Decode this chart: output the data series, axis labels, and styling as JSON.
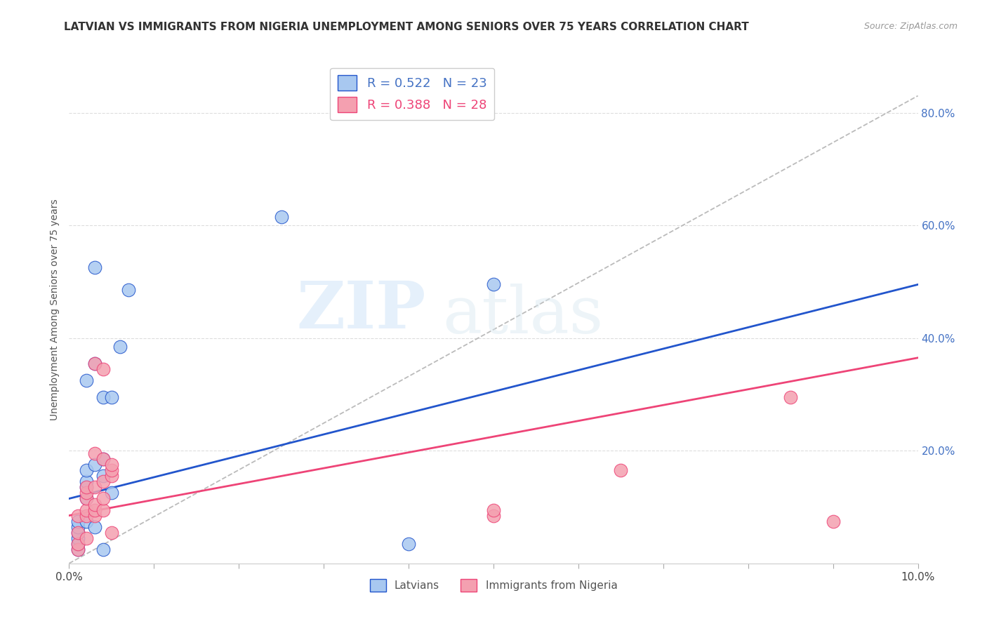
{
  "title": "LATVIAN VS IMMIGRANTS FROM NIGERIA UNEMPLOYMENT AMONG SENIORS OVER 75 YEARS CORRELATION CHART",
  "source": "Source: ZipAtlas.com",
  "ylabel": "Unemployment Among Seniors over 75 years",
  "right_yticks": [
    "80.0%",
    "60.0%",
    "40.0%",
    "20.0%"
  ],
  "right_ytick_vals": [
    0.8,
    0.6,
    0.4,
    0.2
  ],
  "latvian_color": "#A8C8F0",
  "nigerian_color": "#F4A0B0",
  "blue_line_color": "#2255CC",
  "pink_line_color": "#EE4477",
  "dashed_line_color": "#BBBBBB",
  "latvian_points": [
    [
      0.001,
      0.025
    ],
    [
      0.001,
      0.035
    ],
    [
      0.001,
      0.045
    ],
    [
      0.001,
      0.055
    ],
    [
      0.001,
      0.065
    ],
    [
      0.001,
      0.075
    ],
    [
      0.002,
      0.075
    ],
    [
      0.002,
      0.115
    ],
    [
      0.002,
      0.135
    ],
    [
      0.002,
      0.145
    ],
    [
      0.002,
      0.165
    ],
    [
      0.002,
      0.325
    ],
    [
      0.003,
      0.065
    ],
    [
      0.003,
      0.175
    ],
    [
      0.003,
      0.355
    ],
    [
      0.003,
      0.525
    ],
    [
      0.004,
      0.025
    ],
    [
      0.004,
      0.155
    ],
    [
      0.004,
      0.185
    ],
    [
      0.004,
      0.295
    ],
    [
      0.005,
      0.125
    ],
    [
      0.005,
      0.295
    ],
    [
      0.006,
      0.385
    ],
    [
      0.007,
      0.485
    ],
    [
      0.025,
      0.615
    ],
    [
      0.05,
      0.495
    ],
    [
      0.04,
      0.035
    ]
  ],
  "nigerian_points": [
    [
      0.001,
      0.025
    ],
    [
      0.001,
      0.035
    ],
    [
      0.001,
      0.055
    ],
    [
      0.001,
      0.085
    ],
    [
      0.002,
      0.045
    ],
    [
      0.002,
      0.085
    ],
    [
      0.002,
      0.095
    ],
    [
      0.002,
      0.115
    ],
    [
      0.002,
      0.125
    ],
    [
      0.002,
      0.135
    ],
    [
      0.003,
      0.085
    ],
    [
      0.003,
      0.095
    ],
    [
      0.003,
      0.105
    ],
    [
      0.003,
      0.135
    ],
    [
      0.003,
      0.195
    ],
    [
      0.003,
      0.355
    ],
    [
      0.004,
      0.095
    ],
    [
      0.004,
      0.115
    ],
    [
      0.004,
      0.145
    ],
    [
      0.004,
      0.185
    ],
    [
      0.004,
      0.345
    ],
    [
      0.005,
      0.155
    ],
    [
      0.005,
      0.165
    ],
    [
      0.005,
      0.175
    ],
    [
      0.005,
      0.055
    ],
    [
      0.05,
      0.085
    ],
    [
      0.05,
      0.095
    ],
    [
      0.065,
      0.165
    ],
    [
      0.085,
      0.295
    ],
    [
      0.09,
      0.075
    ]
  ],
  "blue_line": {
    "x0": 0.0,
    "y0": 0.115,
    "x1": 0.1,
    "y1": 0.495
  },
  "pink_line": {
    "x0": 0.0,
    "y0": 0.085,
    "x1": 0.1,
    "y1": 0.365
  },
  "diag_line": {
    "x0": 0.0,
    "y0": 0.0,
    "x1": 0.1,
    "y1": 0.83
  },
  "xmin": 0.0,
  "xmax": 0.1,
  "ymin": 0.0,
  "ymax": 0.9,
  "watermark_zip": "ZIP",
  "watermark_atlas": "atlas"
}
